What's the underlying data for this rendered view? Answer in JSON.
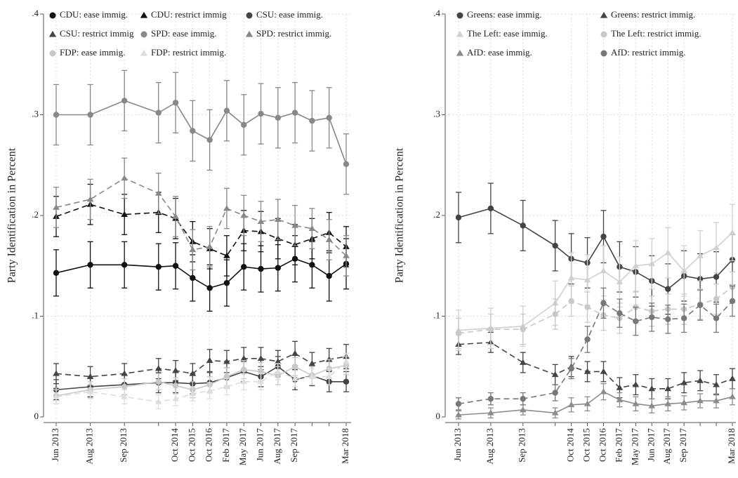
{
  "chart_data": [
    {
      "type": "line",
      "ylabel": "Party Identification in Percent",
      "categories": [
        "Jun 2013",
        "Aug 2013",
        "Sep 2013",
        null,
        "Oct 2014",
        "Oct 2015",
        "Oct 2016",
        "Feb 2017",
        "May 2017",
        "Jun 2017",
        "Aug 2017",
        "Sep 2017",
        null,
        null,
        "Mar 2018"
      ],
      "ylim": [
        0,
        0.4
      ],
      "yticks": [
        {
          "value": 0,
          "label": "0"
        },
        {
          "value": 0.1,
          "label": ".1"
        },
        {
          "value": 0.2,
          "label": ".2"
        },
        {
          "value": 0.3,
          "label": ".3"
        },
        {
          "value": 0.4,
          "label": ".4"
        }
      ],
      "grid": true,
      "series": [
        {
          "name": "CDU: ease immig.",
          "color": "#111111",
          "marker": "circle",
          "dashed": false,
          "values": [
            0.143,
            0.151,
            0.151,
            0.149,
            0.15,
            0.138,
            0.128,
            0.133,
            0.149,
            0.147,
            0.148,
            0.157,
            0.151,
            0.14,
            0.152
          ],
          "errors": [
            0.023,
            0.023,
            0.023,
            0.023,
            0.023,
            0.023,
            0.023,
            0.023,
            0.023,
            0.023,
            0.023,
            0.023,
            0.023,
            0.025,
            0.025
          ]
        },
        {
          "name": "CDU: restrict immig",
          "color": "#111111",
          "marker": "triangle",
          "dashed": true,
          "values": [
            0.199,
            0.211,
            0.201,
            0.203,
            0.197,
            0.174,
            0.167,
            0.16,
            0.185,
            0.184,
            0.177,
            0.171,
            0.177,
            0.183,
            0.169
          ],
          "errors": [
            0.02,
            0.02,
            0.02,
            0.02,
            0.02,
            0.02,
            0.02,
            0.02,
            0.02,
            0.02,
            0.02,
            0.02,
            0.02,
            0.02,
            0.02
          ]
        },
        {
          "name": "CSU: ease immig.",
          "color": "#444444",
          "marker": "circle",
          "dashed": false,
          "values": [
            0.027,
            0.03,
            0.032,
            0.034,
            0.034,
            0.033,
            0.034,
            0.039,
            0.045,
            0.04,
            0.05,
            0.037,
            0.041,
            0.035,
            0.035
          ],
          "errors": [
            0.01,
            0.01,
            0.01,
            0.01,
            0.01,
            0.01,
            0.01,
            0.01,
            0.01,
            0.01,
            0.01,
            0.01,
            0.01,
            0.01,
            0.01
          ]
        },
        {
          "name": "CSU: restrict immig",
          "color": "#444444",
          "marker": "triangle",
          "dashed": true,
          "values": [
            0.043,
            0.04,
            0.043,
            0.048,
            0.046,
            0.043,
            0.056,
            0.055,
            0.058,
            0.058,
            0.055,
            0.063,
            0.053,
            0.057,
            0.06
          ],
          "errors": [
            0.01,
            0.01,
            0.01,
            0.01,
            0.01,
            0.01,
            0.011,
            0.011,
            0.011,
            0.011,
            0.011,
            0.012,
            0.011,
            0.011,
            0.012
          ]
        },
        {
          "name": "SPD: ease immig.",
          "color": "#888888",
          "marker": "circle",
          "dashed": false,
          "values": [
            0.3,
            0.3,
            0.314,
            0.302,
            0.312,
            0.284,
            0.275,
            0.304,
            0.29,
            0.301,
            0.297,
            0.302,
            0.294,
            0.297,
            0.251
          ],
          "errors": [
            0.03,
            0.03,
            0.03,
            0.03,
            0.03,
            0.03,
            0.03,
            0.03,
            0.03,
            0.03,
            0.03,
            0.03,
            0.03,
            0.03,
            0.03
          ]
        },
        {
          "name": "SPD: restrict immig.",
          "color": "#888888",
          "marker": "triangle",
          "dashed": true,
          "values": [
            0.208,
            0.216,
            0.237,
            0.222,
            0.199,
            0.166,
            0.169,
            0.207,
            0.2,
            0.194,
            0.196,
            0.19,
            0.187,
            0.176,
            0.16
          ],
          "errors": [
            0.02,
            0.02,
            0.02,
            0.02,
            0.02,
            0.02,
            0.02,
            0.02,
            0.02,
            0.02,
            0.02,
            0.02,
            0.02,
            0.02,
            0.02
          ]
        },
        {
          "name": "FDP: ease immig.",
          "color": "#c8c8c8",
          "marker": "circle",
          "dashed": false,
          "values": [
            0.021,
            0.027,
            0.03,
            0.035,
            0.031,
            0.027,
            0.032,
            0.04,
            0.047,
            0.045,
            0.041,
            0.05,
            0.041,
            0.048,
            0.051
          ],
          "errors": [
            0.008,
            0.008,
            0.008,
            0.008,
            0.008,
            0.008,
            0.008,
            0.009,
            0.009,
            0.009,
            0.009,
            0.009,
            0.009,
            0.009,
            0.009
          ]
        },
        {
          "name": "FDP: restrict immig.",
          "color": "#dddddd",
          "marker": "triangle",
          "dashed": true,
          "values": [
            0.02,
            0.025,
            0.02,
            0.015,
            0.018,
            0.023,
            0.026,
            0.03,
            0.035,
            0.035,
            0.045,
            0.038,
            0.04,
            0.04,
            0.055
          ],
          "errors": [
            0.007,
            0.007,
            0.007,
            0.007,
            0.007,
            0.007,
            0.008,
            0.008,
            0.008,
            0.008,
            0.008,
            0.008,
            0.008,
            0.008,
            0.008
          ]
        }
      ]
    },
    {
      "type": "line",
      "ylabel": "Party Identification in Percent",
      "categories": [
        "Jun 2013",
        "Aug 2013",
        "Sep 2013",
        null,
        "Oct 2014",
        "Oct 2015",
        "Oct 2016",
        "Feb 2017",
        "May 2017",
        "Jun 2017",
        "Aug 2017",
        "Sep 2017",
        null,
        null,
        "Mar 2018"
      ],
      "ylim": [
        0,
        0.4
      ],
      "yticks": [
        {
          "value": 0,
          "label": "0"
        },
        {
          "value": 0.1,
          "label": ".1"
        },
        {
          "value": 0.2,
          "label": ".2"
        },
        {
          "value": 0.3,
          "label": ".3"
        },
        {
          "value": 0.4,
          "label": ".4"
        }
      ],
      "grid": true,
      "series": [
        {
          "name": "Greens: ease immig.",
          "color": "#444444",
          "marker": "circle",
          "dashed": false,
          "values": [
            0.198,
            0.207,
            0.19,
            0.17,
            0.157,
            0.153,
            0.179,
            0.149,
            0.144,
            0.135,
            0.127,
            0.14,
            0.137,
            0.139,
            0.156
          ],
          "errors": [
            0.025,
            0.025,
            0.025,
            0.025,
            0.025,
            0.025,
            0.026,
            0.025,
            0.025,
            0.025,
            0.025,
            0.025,
            0.025,
            0.025,
            0.025
          ]
        },
        {
          "name": "Greens: restrict immig.",
          "color": "#444444",
          "marker": "triangle",
          "dashed": true,
          "values": [
            0.072,
            0.074,
            0.054,
            0.042,
            0.05,
            0.045,
            0.045,
            0.029,
            0.032,
            0.028,
            0.028,
            0.034,
            0.036,
            0.032,
            0.038
          ],
          "errors": [
            0.01,
            0.01,
            0.01,
            0.01,
            0.01,
            0.01,
            0.01,
            0.01,
            0.01,
            0.01,
            0.01,
            0.01,
            0.01,
            0.01,
            0.01
          ]
        },
        {
          "name": "The Left: ease immig.",
          "color": "#d0d0d0",
          "marker": "triangle",
          "dashed": false,
          "values": [
            0.086,
            0.088,
            0.09,
            0.113,
            0.138,
            0.136,
            0.145,
            0.134,
            0.15,
            0.152,
            0.163,
            0.145,
            0.16,
            0.168,
            0.183
          ],
          "errors": [
            0.02,
            0.02,
            0.02,
            0.022,
            0.025,
            0.025,
            0.025,
            0.025,
            0.025,
            0.025,
            0.025,
            0.025,
            0.025,
            0.025,
            0.028
          ]
        },
        {
          "name": "The Left: restrict immig.",
          "color": "#c8c8c8",
          "marker": "circle",
          "dashed": true,
          "values": [
            0.083,
            0.087,
            0.087,
            0.102,
            0.115,
            0.109,
            0.101,
            0.098,
            0.109,
            0.105,
            0.107,
            0.107,
            0.112,
            0.117,
            0.129
          ],
          "errors": [
            0.015,
            0.015,
            0.015,
            0.015,
            0.015,
            0.015,
            0.015,
            0.015,
            0.015,
            0.015,
            0.015,
            0.015,
            0.015,
            0.015,
            0.015
          ]
        },
        {
          "name": "AfD: ease immig.",
          "color": "#8c8c8c",
          "marker": "triangle",
          "dashed": false,
          "values": [
            0.002,
            0.004,
            0.007,
            0.004,
            0.012,
            0.013,
            0.025,
            0.017,
            0.013,
            0.011,
            0.013,
            0.014,
            0.016,
            0.016,
            0.02
          ],
          "errors": [
            0.004,
            0.005,
            0.005,
            0.005,
            0.007,
            0.007,
            0.008,
            0.007,
            0.007,
            0.007,
            0.007,
            0.007,
            0.007,
            0.007,
            0.008
          ]
        },
        {
          "name": "AfD: restrict immig.",
          "color": "#777777",
          "marker": "circle",
          "dashed": true,
          "values": [
            0.013,
            0.018,
            0.018,
            0.024,
            0.048,
            0.077,
            0.113,
            0.103,
            0.095,
            0.099,
            0.097,
            0.098,
            0.111,
            0.098,
            0.115
          ],
          "errors": [
            0.006,
            0.006,
            0.006,
            0.008,
            0.01,
            0.013,
            0.015,
            0.014,
            0.014,
            0.014,
            0.014,
            0.014,
            0.015,
            0.014,
            0.015
          ]
        }
      ]
    }
  ]
}
